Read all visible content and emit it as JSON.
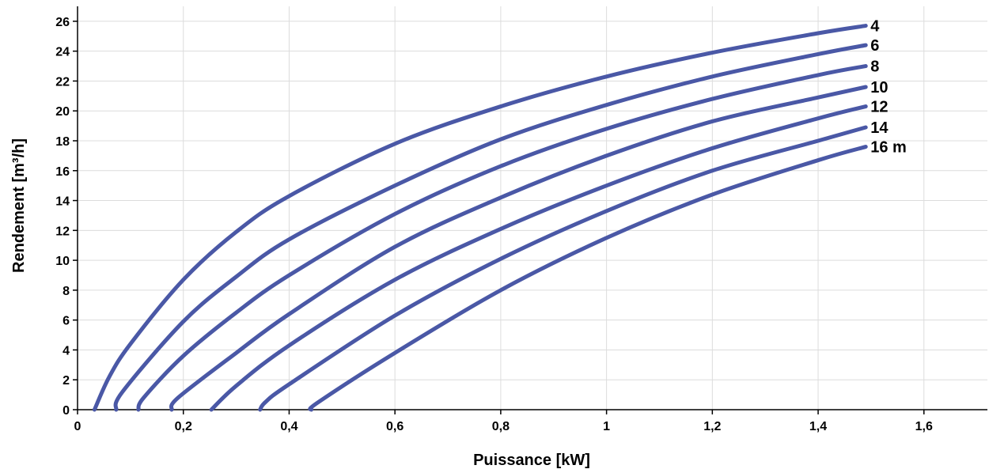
{
  "chart_data": {
    "type": "line",
    "title": "",
    "xlabel": "Puissance  [kW]",
    "ylabel": "Rendement [m³/h]",
    "xlim": [
      0,
      1.72
    ],
    "ylim": [
      0,
      27
    ],
    "x_ticks": [
      0,
      0.2,
      0.4,
      0.6,
      0.8,
      1,
      1.2,
      1.4,
      1.6
    ],
    "x_tick_labels": [
      "0",
      "0,2",
      "0,4",
      "0,6",
      "0,8",
      "1",
      "1,2",
      "1,4",
      "1,6"
    ],
    "y_ticks": [
      0,
      2,
      4,
      6,
      8,
      10,
      12,
      14,
      16,
      18,
      20,
      22,
      24,
      26
    ],
    "y_tick_labels": [
      "0",
      "2",
      "4",
      "6",
      "8",
      "10",
      "12",
      "14",
      "16",
      "18",
      "20",
      "22",
      "24",
      "26"
    ],
    "grid": true,
    "line_color": "#4a58a6",
    "series": [
      {
        "name": "4",
        "points": [
          [
            0.032,
            0
          ],
          [
            0.06,
            2.2
          ],
          [
            0.1,
            4.4
          ],
          [
            0.2,
            8.7
          ],
          [
            0.3,
            11.9
          ],
          [
            0.4,
            14.3
          ],
          [
            0.6,
            17.8
          ],
          [
            0.8,
            20.3
          ],
          [
            1.0,
            22.3
          ],
          [
            1.2,
            23.9
          ],
          [
            1.4,
            25.2
          ],
          [
            1.49,
            25.7
          ]
        ]
      },
      {
        "name": "6",
        "points": [
          [
            0.073,
            0
          ],
          [
            0.085,
            1.2
          ],
          [
            0.2,
            5.9
          ],
          [
            0.3,
            8.9
          ],
          [
            0.4,
            11.4
          ],
          [
            0.6,
            15.0
          ],
          [
            0.8,
            18.1
          ],
          [
            1.0,
            20.4
          ],
          [
            1.2,
            22.3
          ],
          [
            1.4,
            23.8
          ],
          [
            1.49,
            24.4
          ]
        ]
      },
      {
        "name": "8",
        "points": [
          [
            0.115,
            0
          ],
          [
            0.125,
            0.8
          ],
          [
            0.2,
            3.6
          ],
          [
            0.3,
            6.5
          ],
          [
            0.4,
            9.0
          ],
          [
            0.6,
            13.1
          ],
          [
            0.8,
            16.3
          ],
          [
            1.0,
            18.8
          ],
          [
            1.2,
            20.8
          ],
          [
            1.4,
            22.4
          ],
          [
            1.49,
            23.0
          ]
        ]
      },
      {
        "name": "10",
        "points": [
          [
            0.178,
            0
          ],
          [
            0.19,
            0.8
          ],
          [
            0.3,
            3.8
          ],
          [
            0.4,
            6.4
          ],
          [
            0.6,
            10.9
          ],
          [
            0.8,
            14.2
          ],
          [
            1.0,
            17.0
          ],
          [
            1.2,
            19.3
          ],
          [
            1.4,
            20.9
          ],
          [
            1.49,
            21.6
          ]
        ]
      },
      {
        "name": "12",
        "points": [
          [
            0.253,
            0
          ],
          [
            0.3,
            1.6
          ],
          [
            0.4,
            4.3
          ],
          [
            0.6,
            8.7
          ],
          [
            0.8,
            12.1
          ],
          [
            1.0,
            15.0
          ],
          [
            1.2,
            17.5
          ],
          [
            1.4,
            19.5
          ],
          [
            1.49,
            20.3
          ]
        ]
      },
      {
        "name": "14",
        "points": [
          [
            0.345,
            0
          ],
          [
            0.355,
            0.5
          ],
          [
            0.4,
            1.7
          ],
          [
            0.6,
            6.3
          ],
          [
            0.8,
            10.1
          ],
          [
            1.0,
            13.3
          ],
          [
            1.2,
            16.0
          ],
          [
            1.4,
            18.0
          ],
          [
            1.49,
            18.9
          ]
        ]
      },
      {
        "name": "16 m",
        "points": [
          [
            0.442,
            0
          ],
          [
            0.455,
            0.5
          ],
          [
            0.6,
            3.8
          ],
          [
            0.8,
            8.0
          ],
          [
            1.0,
            11.5
          ],
          [
            1.2,
            14.4
          ],
          [
            1.4,
            16.7
          ],
          [
            1.49,
            17.6
          ]
        ]
      }
    ]
  }
}
